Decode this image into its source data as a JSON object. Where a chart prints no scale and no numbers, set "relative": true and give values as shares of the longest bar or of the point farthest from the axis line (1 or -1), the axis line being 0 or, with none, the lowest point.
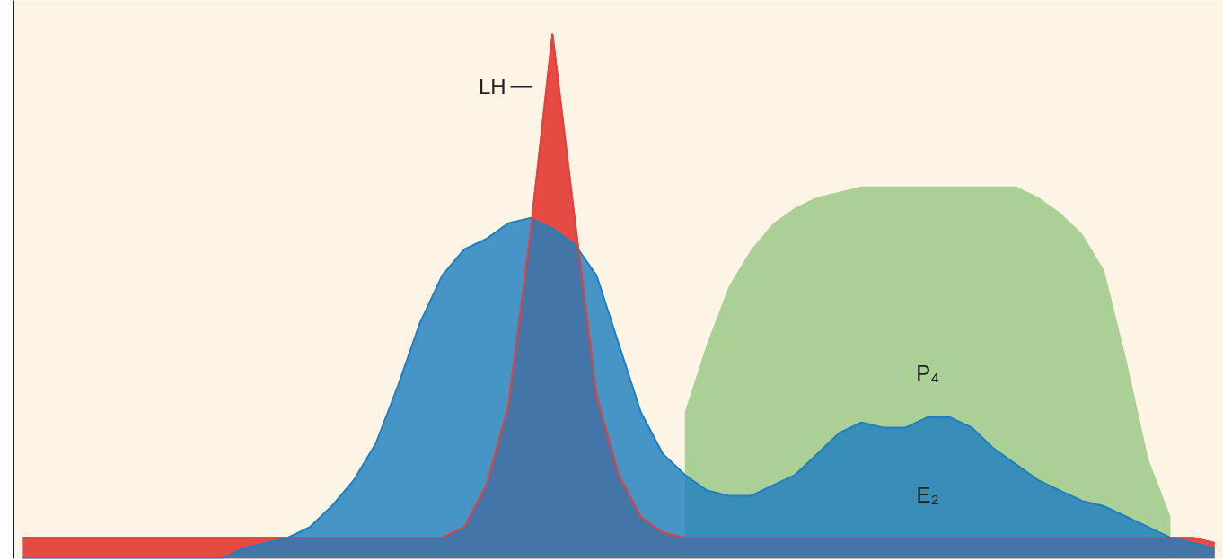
{
  "chart_data": {
    "type": "area",
    "relative": true,
    "categories": [
      null,
      null,
      null,
      null,
      null,
      null,
      null,
      null,
      null,
      null,
      null,
      null,
      null,
      null,
      null,
      null,
      null,
      null,
      null,
      null,
      null,
      null,
      null,
      null,
      null,
      null,
      null,
      null,
      null,
      null,
      null,
      null,
      null,
      null,
      null,
      null,
      null,
      null,
      null,
      null,
      null,
      null,
      null,
      null,
      null,
      null,
      null,
      null,
      null,
      null,
      null,
      null,
      null,
      null,
      null
    ],
    "series": [
      {
        "name": "P₄",
        "color": "#8fc47a",
        "values": [
          null,
          null,
          null,
          null,
          null,
          null,
          null,
          null,
          null,
          null,
          null,
          null,
          null,
          null,
          null,
          null,
          null,
          null,
          null,
          null,
          null,
          null,
          null,
          null,
          null,
          null,
          null,
          null,
          null,
          null,
          0.28,
          0.41,
          0.52,
          0.59,
          0.64,
          0.67,
          0.69,
          0.7,
          0.71,
          0.71,
          0.71,
          0.71,
          0.71,
          0.71,
          0.71,
          0.71,
          0.69,
          0.66,
          0.62,
          0.55,
          0.38,
          0.19,
          0.08,
          null,
          null
        ]
      },
      {
        "name": "LH",
        "color": "#e5413a",
        "values": [
          0.04,
          0.04,
          0.04,
          0.04,
          0.04,
          0.04,
          0.04,
          0.04,
          0.04,
          0.04,
          0.04,
          0.04,
          0.04,
          0.04,
          0.04,
          0.04,
          0.04,
          0.04,
          0.04,
          0.04,
          0.06,
          0.14,
          0.29,
          0.62,
          1.0,
          0.65,
          0.31,
          0.16,
          0.08,
          0.05,
          0.04,
          0.04,
          0.04,
          0.04,
          0.04,
          0.04,
          0.04,
          0.04,
          0.04,
          0.04,
          0.04,
          0.04,
          0.04,
          0.04,
          0.04,
          0.04,
          0.04,
          0.04,
          0.04,
          0.04,
          0.04,
          0.04,
          0.04,
          0.04,
          0.03
        ]
      },
      {
        "name": "E₂",
        "color": "#1f7fc0",
        "values": [
          0,
          0,
          0,
          0,
          0,
          0,
          0,
          0,
          0,
          0,
          0.02,
          0.03,
          0.04,
          0.06,
          0.1,
          0.15,
          0.22,
          0.33,
          0.45,
          0.54,
          0.59,
          0.61,
          0.64,
          0.65,
          0.63,
          0.6,
          0.54,
          0.41,
          0.28,
          0.2,
          0.16,
          0.13,
          0.12,
          0.12,
          0.14,
          0.16,
          0.2,
          0.24,
          0.26,
          0.25,
          0.25,
          0.27,
          0.27,
          0.25,
          0.21,
          0.18,
          0.15,
          0.13,
          0.11,
          0.1,
          0.08,
          0.06,
          0.04,
          0.03,
          0.02
        ]
      }
    ]
  }
}
